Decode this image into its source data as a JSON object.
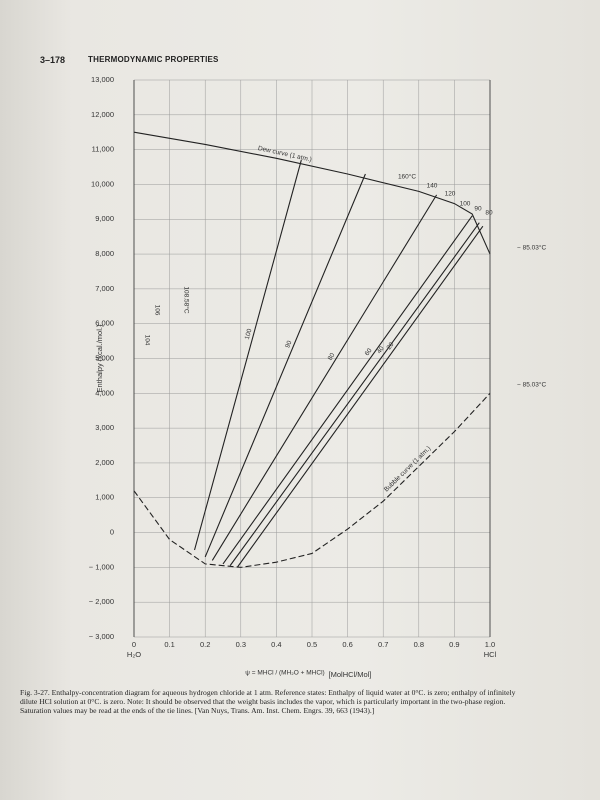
{
  "page": {
    "number": "3–178",
    "header": "THERMODYNAMIC PROPERTIES"
  },
  "chart_data": {
    "type": "line",
    "y_label": "Enthalpy (kcal./mol.)",
    "x_label": "ψ = MHCl / (MH₂O + MHCl)",
    "x_unit": "[MolHCl/Mol]",
    "x_end_labels": [
      "H₂O",
      "HCl"
    ],
    "xlim": [
      0,
      1
    ],
    "ylim": [
      -3000,
      13000
    ],
    "xticks": [
      0,
      0.1,
      0.2,
      0.3,
      0.4,
      0.5,
      0.6,
      0.7,
      0.8,
      0.9,
      {
        "value": 1,
        "label": "1.0"
      }
    ],
    "yticks": [
      {
        "value": -3000,
        "label": "− 3,000"
      },
      {
        "value": -2000,
        "label": "− 2,000"
      },
      {
        "value": -1000,
        "label": "− 1,000"
      },
      0,
      {
        "value": 1000,
        "label": "1,000"
      },
      {
        "value": 2000,
        "label": "2,000"
      },
      {
        "value": 3000,
        "label": "3,000"
      },
      {
        "value": 4000,
        "label": "4,000"
      },
      {
        "value": 5000,
        "label": "5,000"
      },
      {
        "value": 6000,
        "label": "6,000"
      },
      {
        "value": 7000,
        "label": "7,000"
      },
      {
        "value": 8000,
        "label": "8,000"
      },
      {
        "value": 9000,
        "label": "9,000"
      },
      {
        "value": 10000,
        "label": "10,000"
      },
      {
        "value": 11000,
        "label": "11,000"
      },
      {
        "value": 12000,
        "label": "12,000"
      },
      {
        "value": 13000,
        "label": "13,000"
      }
    ],
    "grid": true,
    "series": [
      {
        "name": "Dew curve (1 atm.)",
        "color": "#222222",
        "x": [
          0,
          0.2,
          0.4,
          0.6,
          0.8,
          0.9,
          0.95,
          1.0
        ],
        "values": [
          11500,
          11150,
          10750,
          10300,
          9800,
          9450,
          9150,
          8000
        ]
      },
      {
        "name": "Bubble curve (1 atm.)",
        "color": "#222222",
        "dashed": true,
        "x": [
          0,
          0.1,
          0.2,
          0.3,
          0.4,
          0.5,
          0.6,
          0.7,
          0.8,
          0.9,
          1.0
        ],
        "values": [
          1200,
          -200,
          -900,
          -1000,
          -850,
          -600,
          100,
          900,
          1900,
          2900,
          4000
        ]
      },
      {
        "name": "100",
        "color": "#222222",
        "x": [
          0.17,
          0.47
        ],
        "values": [
          -500,
          10700
        ]
      },
      {
        "name": "90",
        "color": "#222222",
        "x": [
          0.2,
          0.65
        ],
        "values": [
          -700,
          10300
        ]
      },
      {
        "name": "80",
        "color": "#222222",
        "x": [
          0.22,
          0.85
        ],
        "values": [
          -800,
          9700
        ]
      },
      {
        "name": "60",
        "color": "#222222",
        "x": [
          0.25,
          0.95
        ],
        "values": [
          -900,
          9100
        ]
      },
      {
        "name": "40",
        "color": "#222222",
        "x": [
          0.27,
          0.97
        ],
        "values": [
          -950,
          8900
        ]
      },
      {
        "name": "20",
        "color": "#222222",
        "x": [
          0.29,
          0.98
        ],
        "values": [
          -1000,
          8800
        ]
      }
    ],
    "annotations": [
      "160°C",
      "140",
      "120",
      "100",
      "90",
      "80",
      "− 85.03°C",
      "− 85.03°C",
      "108.58°C",
      "106",
      "104"
    ]
  },
  "caption": "Fig. 3-27. Enthalpy-concentration diagram for aqueous hydrogen chloride at 1 atm. Reference states: Enthalpy of liquid water at 0°C. is zero; enthalpy of infinitely dilute HCl solution at 0°C. is zero. Note: It should be observed that the weight basis includes the vapor, which is particularly important in the two-phase region. Saturation values may be read at the ends of the tie lines. [Van Nuys, Trans. Am. Inst. Chem. Engrs. 39, 663 (1943).]"
}
